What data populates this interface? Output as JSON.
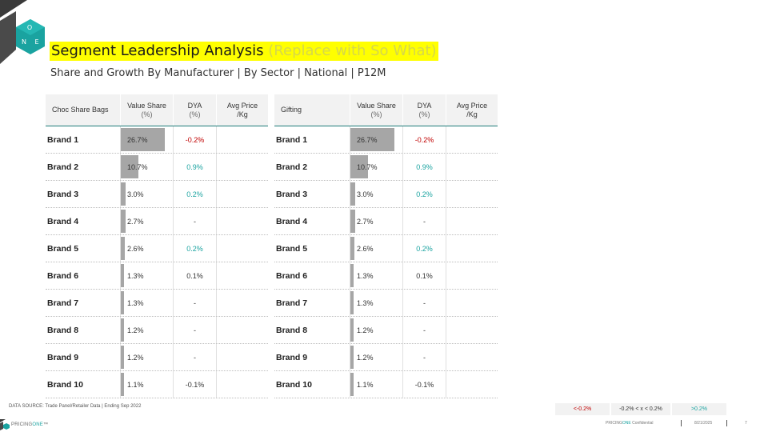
{
  "header": {
    "title": "Segment Leadership Analysis",
    "title_so_what": "(Replace with So What)",
    "subtitle": "Share and Growth By Manufacturer | By Sector | National | P12M"
  },
  "logo": {
    "letters": [
      "O",
      "N",
      "E"
    ]
  },
  "tables": [
    {
      "segment": "Choc Share Bags",
      "col_share": "Value Share",
      "col_share_unit": "(%)",
      "col_dya": "DYA",
      "col_dya_unit": "(%)",
      "col_avg": "Avg Price",
      "col_avg_unit": "/Kg",
      "rows": [
        {
          "brand": "Brand 1",
          "share": "26.7%",
          "share_num": 26.7,
          "dya": "-0.2%",
          "dya_class": "neg"
        },
        {
          "brand": "Brand 2",
          "share": "10.7%",
          "share_num": 10.7,
          "dya": "0.9%",
          "dya_class": "pos"
        },
        {
          "brand": "Brand 3",
          "share": "3.0%",
          "share_num": 3.0,
          "dya": "0.2%",
          "dya_class": "pos"
        },
        {
          "brand": "Brand 4",
          "share": "2.7%",
          "share_num": 2.7,
          "dya": "-",
          "dya_class": "neu"
        },
        {
          "brand": "Brand 5",
          "share": "2.6%",
          "share_num": 2.6,
          "dya": "0.2%",
          "dya_class": "pos"
        },
        {
          "brand": "Brand 6",
          "share": "1.3%",
          "share_num": 1.3,
          "dya": "0.1%",
          "dya_class": "neu"
        },
        {
          "brand": "Brand 7",
          "share": "1.3%",
          "share_num": 1.3,
          "dya": "-",
          "dya_class": "neu"
        },
        {
          "brand": "Brand 8",
          "share": "1.2%",
          "share_num": 1.2,
          "dya": "-",
          "dya_class": "neu"
        },
        {
          "brand": "Brand 9",
          "share": "1.2%",
          "share_num": 1.2,
          "dya": "-",
          "dya_class": "neu"
        },
        {
          "brand": "Brand 10",
          "share": "1.1%",
          "share_num": 1.1,
          "dya": "-0.1%",
          "dya_class": "neu"
        }
      ]
    },
    {
      "segment": "Gifting",
      "col_share": "Value Share",
      "col_share_unit": "(%)",
      "col_dya": "DYA",
      "col_dya_unit": "(%)",
      "col_avg": "Avg Price",
      "col_avg_unit": "/Kg",
      "rows": [
        {
          "brand": "Brand 1",
          "share": "26.7%",
          "share_num": 26.7,
          "dya": "-0.2%",
          "dya_class": "neg"
        },
        {
          "brand": "Brand 2",
          "share": "10.7%",
          "share_num": 10.7,
          "dya": "0.9%",
          "dya_class": "pos"
        },
        {
          "brand": "Brand 3",
          "share": "3.0%",
          "share_num": 3.0,
          "dya": "0.2%",
          "dya_class": "pos"
        },
        {
          "brand": "Brand 4",
          "share": "2.7%",
          "share_num": 2.7,
          "dya": "-",
          "dya_class": "neu"
        },
        {
          "brand": "Brand 5",
          "share": "2.6%",
          "share_num": 2.6,
          "dya": "0.2%",
          "dya_class": "pos"
        },
        {
          "brand": "Brand 6",
          "share": "1.3%",
          "share_num": 1.3,
          "dya": "0.1%",
          "dya_class": "neu"
        },
        {
          "brand": "Brand 7",
          "share": "1.3%",
          "share_num": 1.3,
          "dya": "-",
          "dya_class": "neu"
        },
        {
          "brand": "Brand 8",
          "share": "1.2%",
          "share_num": 1.2,
          "dya": "-",
          "dya_class": "neu"
        },
        {
          "brand": "Brand 9",
          "share": "1.2%",
          "share_num": 1.2,
          "dya": "-",
          "dya_class": "neu"
        },
        {
          "brand": "Brand 10",
          "share": "1.1%",
          "share_num": 1.1,
          "dya": "-0.1%",
          "dya_class": "neu"
        }
      ]
    }
  ],
  "share_bar_max": 26.7,
  "source": "DATA SOURCE: Trade Panel/Retailer Data | Ending Sep 2022",
  "legend": {
    "neg": "<-0.2%",
    "mid": "-0.2% < x < 0.2%",
    "pos": ">0.2%"
  },
  "footer": {
    "brand_prefix": "PRICING",
    "brand_suffix": "ONE",
    "brand_tm": "™",
    "confidential_prefix": "PRICING",
    "confidential_one": "ONE",
    "confidential_suffix": " Confidential",
    "date": "8/21/2025",
    "page": "7"
  },
  "colors": {
    "teal": "#1aa3a0",
    "negative": "#c00000",
    "bar": "#a6a6a6",
    "highlight": "#ffff00",
    "header_line": "#1f7c7a"
  }
}
